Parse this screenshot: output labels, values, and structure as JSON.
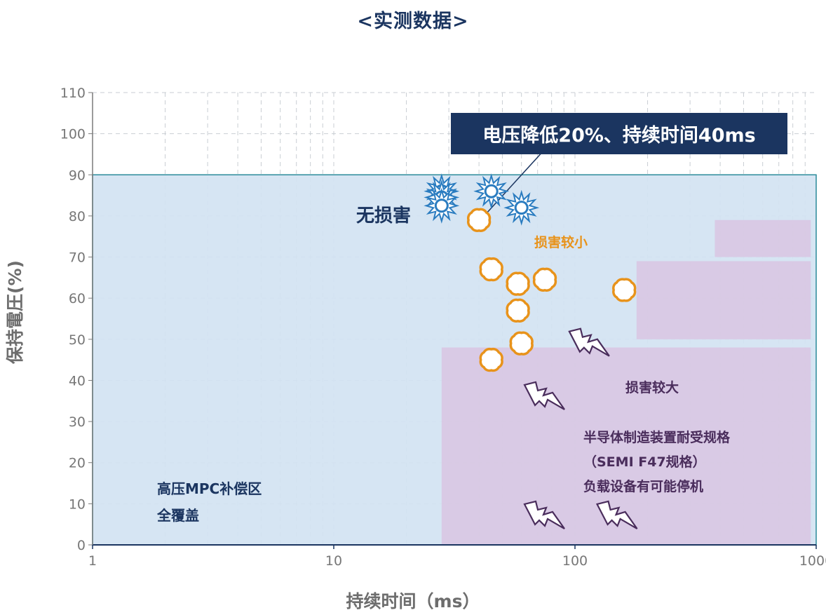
{
  "title": "<实测数据>",
  "callout": "电压降低20%、持续时间40ms",
  "chart_data": {
    "type": "scatter",
    "xscale": "log",
    "xlim": [
      1,
      1000
    ],
    "ylim": [
      0,
      110
    ],
    "xlabel": "持续时间（ms）",
    "ylabel": "保持電圧(%)",
    "x_ticks": [
      "1",
      "10",
      "100",
      "1000"
    ],
    "y_ticks": [
      "0",
      "10",
      "20",
      "30",
      "40",
      "50",
      "60",
      "70",
      "80",
      "90",
      "100",
      "110"
    ],
    "grid": true,
    "regions": [
      {
        "name": "高压MPC补偿区 全覆盖",
        "x": [
          1,
          1000
        ],
        "y": [
          0,
          90
        ],
        "color": "#d3e3f2"
      },
      {
        "name": "半导体制造装置耐受规格（SEMI F47规格）",
        "steps": [
          {
            "x": [
              28,
              950
            ],
            "y": [
              0,
              48
            ]
          },
          {
            "x": [
              180,
              950
            ],
            "y": [
              50,
              69
            ]
          },
          {
            "x": [
              380,
              950
            ],
            "y": [
              70,
              79
            ]
          }
        ],
        "color": "#d9c6e2"
      }
    ],
    "series": [
      {
        "name": "无损害",
        "marker": "sunburst",
        "color": "#2a7cc0",
        "points": [
          [
            28,
            86
          ],
          [
            28,
            84.5
          ],
          [
            28,
            82.5
          ],
          [
            45,
            86
          ],
          [
            60,
            82
          ]
        ]
      },
      {
        "name": "损害较小",
        "marker": "cloud",
        "color": "#e8931b",
        "points": [
          [
            40,
            79
          ],
          [
            45,
            67
          ],
          [
            58,
            63.5
          ],
          [
            75,
            64.5
          ],
          [
            160,
            62
          ],
          [
            58,
            57
          ],
          [
            60,
            49
          ],
          [
            45,
            45
          ]
        ]
      },
      {
        "name": "损害较大",
        "marker": "lightning",
        "color": "#4a2d5c",
        "points": [
          [
            115,
            49
          ],
          [
            75,
            36
          ],
          [
            75,
            7
          ],
          [
            150,
            7
          ]
        ]
      }
    ],
    "annotations": [
      {
        "text": "无损害",
        "color": "#1b3560"
      },
      {
        "text": "损害较小",
        "color": "#e8931b"
      },
      {
        "text": "损害较大",
        "color": "#4a2d5c"
      },
      {
        "text": "半导体制造装置耐受规格",
        "color": "#4a2d5c"
      },
      {
        "text": "（SEMI F47规格）",
        "color": "#4a2d5c"
      },
      {
        "text": "负载设备有可能停机",
        "color": "#4a2d5c"
      },
      {
        "text": "高压MPC补偿区",
        "color": "#1b3560"
      },
      {
        "text": "全覆盖",
        "color": "#1b3560"
      }
    ],
    "highlight_point": {
      "label": "电压降低20%、持续时间40ms",
      "x": 40,
      "y": 80
    }
  }
}
